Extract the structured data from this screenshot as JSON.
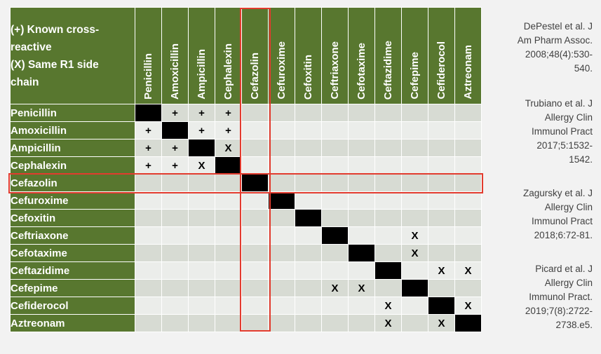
{
  "legend": {
    "line1": "(+) Known cross-",
    "line2": "reactive",
    "line3": "(X) Same R1 side",
    "line4": "chain"
  },
  "columns": [
    "Penicillin",
    "Amoxicillin",
    "Ampicillin",
    "Cephalexin",
    "Cefazolin",
    "Cefuroxime",
    "Cefoxitin",
    "Ceftriaxone",
    "Cefotaxime",
    "Ceftazidime",
    "Cefepime",
    "Cefiderocol",
    "Aztreonam"
  ],
  "rows": [
    {
      "name": "Penicillin",
      "cells": [
        "",
        "+",
        "+",
        "+",
        "",
        "",
        "",
        "",
        "",
        "",
        "",
        "",
        ""
      ]
    },
    {
      "name": "Amoxicillin",
      "cells": [
        "+",
        "",
        "+",
        "+",
        "",
        "",
        "",
        "",
        "",
        "",
        "",
        "",
        ""
      ]
    },
    {
      "name": "Ampicillin",
      "cells": [
        "+",
        "+",
        "",
        "X",
        "",
        "",
        "",
        "",
        "",
        "",
        "",
        "",
        ""
      ]
    },
    {
      "name": "Cephalexin",
      "cells": [
        "+",
        "+",
        "X",
        "",
        "",
        "",
        "",
        "",
        "",
        "",
        "",
        "",
        ""
      ]
    },
    {
      "name": "Cefazolin",
      "cells": [
        "",
        "",
        "",
        "",
        "",
        "",
        "",
        "",
        "",
        "",
        "",
        "",
        ""
      ]
    },
    {
      "name": "Cefuroxime",
      "cells": [
        "",
        "",
        "",
        "",
        "",
        "",
        "",
        "",
        "",
        "",
        "",
        "",
        ""
      ]
    },
    {
      "name": "Cefoxitin",
      "cells": [
        "",
        "",
        "",
        "",
        "",
        "",
        "",
        "",
        "",
        "",
        "",
        "",
        ""
      ]
    },
    {
      "name": "Ceftriaxone",
      "cells": [
        "",
        "",
        "",
        "",
        "",
        "",
        "",
        "",
        "",
        "",
        "X",
        "",
        ""
      ]
    },
    {
      "name": "Cefotaxime",
      "cells": [
        "",
        "",
        "",
        "",
        "",
        "",
        "",
        "",
        "",
        "",
        "X",
        "",
        ""
      ]
    },
    {
      "name": "Ceftazidime",
      "cells": [
        "",
        "",
        "",
        "",
        "",
        "",
        "",
        "",
        "",
        "",
        "",
        "X",
        "X"
      ]
    },
    {
      "name": "Cefepime",
      "cells": [
        "",
        "",
        "",
        "",
        "",
        "",
        "",
        "X",
        "X",
        "",
        "",
        "",
        ""
      ]
    },
    {
      "name": "Cefiderocol",
      "cells": [
        "",
        "",
        "",
        "",
        "",
        "",
        "",
        "",
        "",
        "X",
        "",
        "",
        "X"
      ]
    },
    {
      "name": "Aztreonam",
      "cells": [
        "",
        "",
        "",
        "",
        "",
        "",
        "",
        "",
        "",
        "X",
        "",
        "X",
        ""
      ]
    }
  ],
  "highlighted_drug": "Cefazolin",
  "colors": {
    "header_green": "#58772f",
    "highlight_red": "#e23b2e",
    "diagonal": "#000000",
    "row_shade_dark": "#d7dbd3",
    "row_shade_light": "#ebedea"
  },
  "references": [
    [
      "DePestel et al. J",
      "Am Pharm Assoc.",
      "2008;48(4):530-",
      "540."
    ],
    [
      "Trubiano et al. J",
      "Allergy Clin",
      "Immunol Pract",
      "2017;5:1532-",
      "1542."
    ],
    [
      "Zagursky et al. J",
      "Allergy Clin",
      "Immunol Pract",
      "2018;6:72-81."
    ],
    [
      "Picard et al. J",
      "Allergy Clin",
      "Immunol Pract.",
      "2019;7(8):2722-",
      "2738.e5."
    ]
  ]
}
